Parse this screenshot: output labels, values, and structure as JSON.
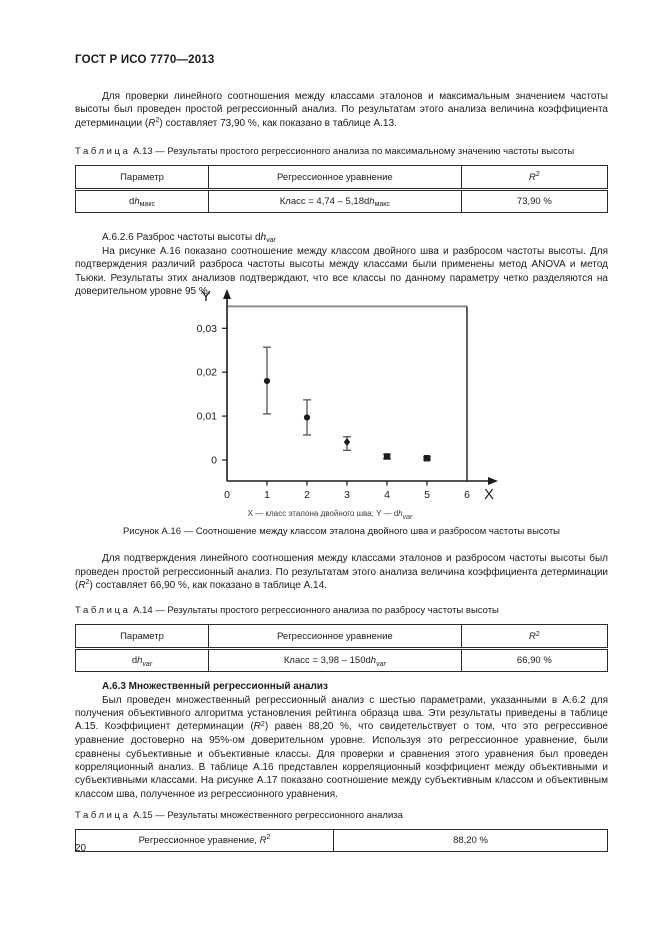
{
  "page": {
    "header": "ГОСТ Р ИСО 7770—2013",
    "number": "20"
  },
  "paragraphs": {
    "p1": [
      {
        "t": "Для проверки линейного соотношения между классами эталонов и максимальным значением частоты высоты был проведен простой регрессионный анализ. По результатам этого анализа величина коэффициента детерминации ("
      },
      {
        "t": "R",
        "i": true
      },
      {
        "t": "2",
        "sup": true
      },
      {
        "t": ") составляет 73,90 %, как показано в таблице А.13."
      }
    ],
    "sec_a626_title": [
      {
        "t": "А.6.2.6 Разброс частоты высоты d"
      },
      {
        "t": "h",
        "i": true
      },
      {
        "t": "var",
        "i": true,
        "sub": true
      }
    ],
    "p2": "На рисунке А.16 показано соотношение между классом двойного шва и разбросом частоты высоты. Для подтверждения различий разброса частоты высоты между классами были применены метод ANOVA и метод Тьюки. Результаты этих анализов подтверждают, что все классы по данному параметру четко разделяются на доверительном уровне 95 %.",
    "p3": [
      {
        "t": "Для подтверждения линейного соотношения между классами эталонов и разбросом частоты высоты был проведен простой регрессионный анализ. По результатам этого анализа величина коэффициента детерминации ("
      },
      {
        "t": "R",
        "i": true
      },
      {
        "t": "2",
        "sup": true
      },
      {
        "t": ") составляет 66,90 %, как показано в таблице А.14."
      }
    ],
    "sec_a63_title": "А.6.3 Множественный регрессионный анализ",
    "p4": [
      {
        "t": "Был проведен множественный регрессионный анализ с шестью параметрами, указанными в А.6.2 для получения объективного алгоритма установления рейтинга образца шва. Эти результаты приведены в таблице А.15. Коэффициент детерминации ("
      },
      {
        "t": "R",
        "i": true
      },
      {
        "t": "2",
        "sup": true
      },
      {
        "t": ") равен 88,20 %, что свидетельствует о том, что это регрессивное уравнение достоверно на 95%-ом доверительном уровне. Используя это регрессионное уравнение, были сравнены субъективные и объективные классы. Для проверки и сравнения этого уравнения был проведен корреляционный анализ. В таблице А.16 представлен корреляционный коэффициент между объективными и субъективными классами. На рисунке А.17 показано соотношение между субъективным классом и объективным классом шва, полученное из регрессионного уравнения."
      }
    ]
  },
  "figure": {
    "caption_label": "Рисунок А.16",
    "caption_dash": "—",
    "caption_title": "Соотношение между классом эталона двойного шва и разбросом частоты высоты",
    "legend": [
      {
        "t": "X — класс эталона двойного шва; Y — d"
      },
      {
        "t": "h",
        "i": true
      },
      {
        "t": "var",
        "i": true,
        "sub": true
      }
    ]
  },
  "tables": {
    "a13": {
      "caption_word": "Таблица",
      "caption_num": "А.13",
      "caption_dash": "—",
      "caption_title": "Результаты простого регрессионного анализа по максимальному значению частоты высоты",
      "headers": [
        "Параметр",
        "Регрессионное уравнение",
        [
          {
            "t": "R",
            "i": true
          },
          {
            "t": "2",
            "sup": true
          }
        ]
      ],
      "rows": [
        [
          [
            {
              "t": "d"
            },
            {
              "t": "h",
              "i": true
            },
            {
              "t": "макс",
              "sub": true
            }
          ],
          [
            {
              "t": "Класс = 4,74 – 5,18d"
            },
            {
              "t": "h",
              "i": true
            },
            {
              "t": "макс",
              "sub": true
            }
          ],
          "73,90 %"
        ]
      ]
    },
    "a14": {
      "caption_word": "Таблица",
      "caption_num": "А.14",
      "caption_dash": "—",
      "caption_title": "Результаты простого регрессионного анализа по разбросу частоты высоты",
      "headers": [
        "Параметр",
        "Регрессионное уравнение",
        [
          {
            "t": "R",
            "i": true
          },
          {
            "t": "2",
            "sup": true
          }
        ]
      ],
      "rows": [
        [
          [
            {
              "t": "d"
            },
            {
              "t": "h",
              "i": true
            },
            {
              "t": "var",
              "i": true,
              "sub": true
            }
          ],
          [
            {
              "t": "Класс = 3,98 – 150d"
            },
            {
              "t": "h",
              "i": true
            },
            {
              "t": "var",
              "i": true,
              "sub": true
            }
          ],
          "66,90 %"
        ]
      ]
    },
    "a15": {
      "caption_word": "Таблица",
      "caption_num": "А.15",
      "caption_dash": "—",
      "caption_title": "Результаты множественного регрессионного анализа",
      "rows": [
        [
          [
            {
              "t": "Регрессионное уравнение, "
            },
            {
              "t": "R",
              "i": true
            },
            {
              "t": "2",
              "sup": true
            }
          ],
          "88,20 %"
        ]
      ]
    }
  },
  "chart_data": {
    "type": "scatter",
    "title": "",
    "xlabel": "X",
    "ylabel": "Y",
    "x_axis_meaning": "класс эталона двойного шва",
    "y_axis_meaning": "dh_var (разброс частоты высоты)",
    "legend": "X — класс эталона двойного шва; Y — dh_var",
    "legend_position": "bottom-center",
    "grid": false,
    "xlim": [
      0,
      6
    ],
    "ylim": [
      0,
      0.035
    ],
    "x_ticks": [
      0,
      1,
      2,
      3,
      4,
      5,
      6
    ],
    "y_ticks": [
      0,
      0.01,
      0.02,
      0.03
    ],
    "y_tick_labels": [
      "0",
      "0,01",
      "0,02",
      "0,03"
    ],
    "points": [
      {
        "x": 1,
        "y": 0.018,
        "err_lo": 0.0105,
        "err_hi": 0.0257,
        "marker": "circle"
      },
      {
        "x": 2,
        "y": 0.0097,
        "err_lo": 0.0057,
        "err_hi": 0.0137,
        "marker": "circle"
      },
      {
        "x": 3,
        "y": 0.0041,
        "err_lo": 0.0022,
        "err_hi": 0.0053,
        "marker": "diamond"
      },
      {
        "x": 4,
        "y": 0.0008,
        "err_lo": 0.0003,
        "err_hi": 0.0013,
        "marker": "square"
      },
      {
        "x": 5,
        "y": 0.0004,
        "err_lo": 0.0001,
        "err_hi": 0.0007,
        "marker": "square"
      }
    ]
  }
}
